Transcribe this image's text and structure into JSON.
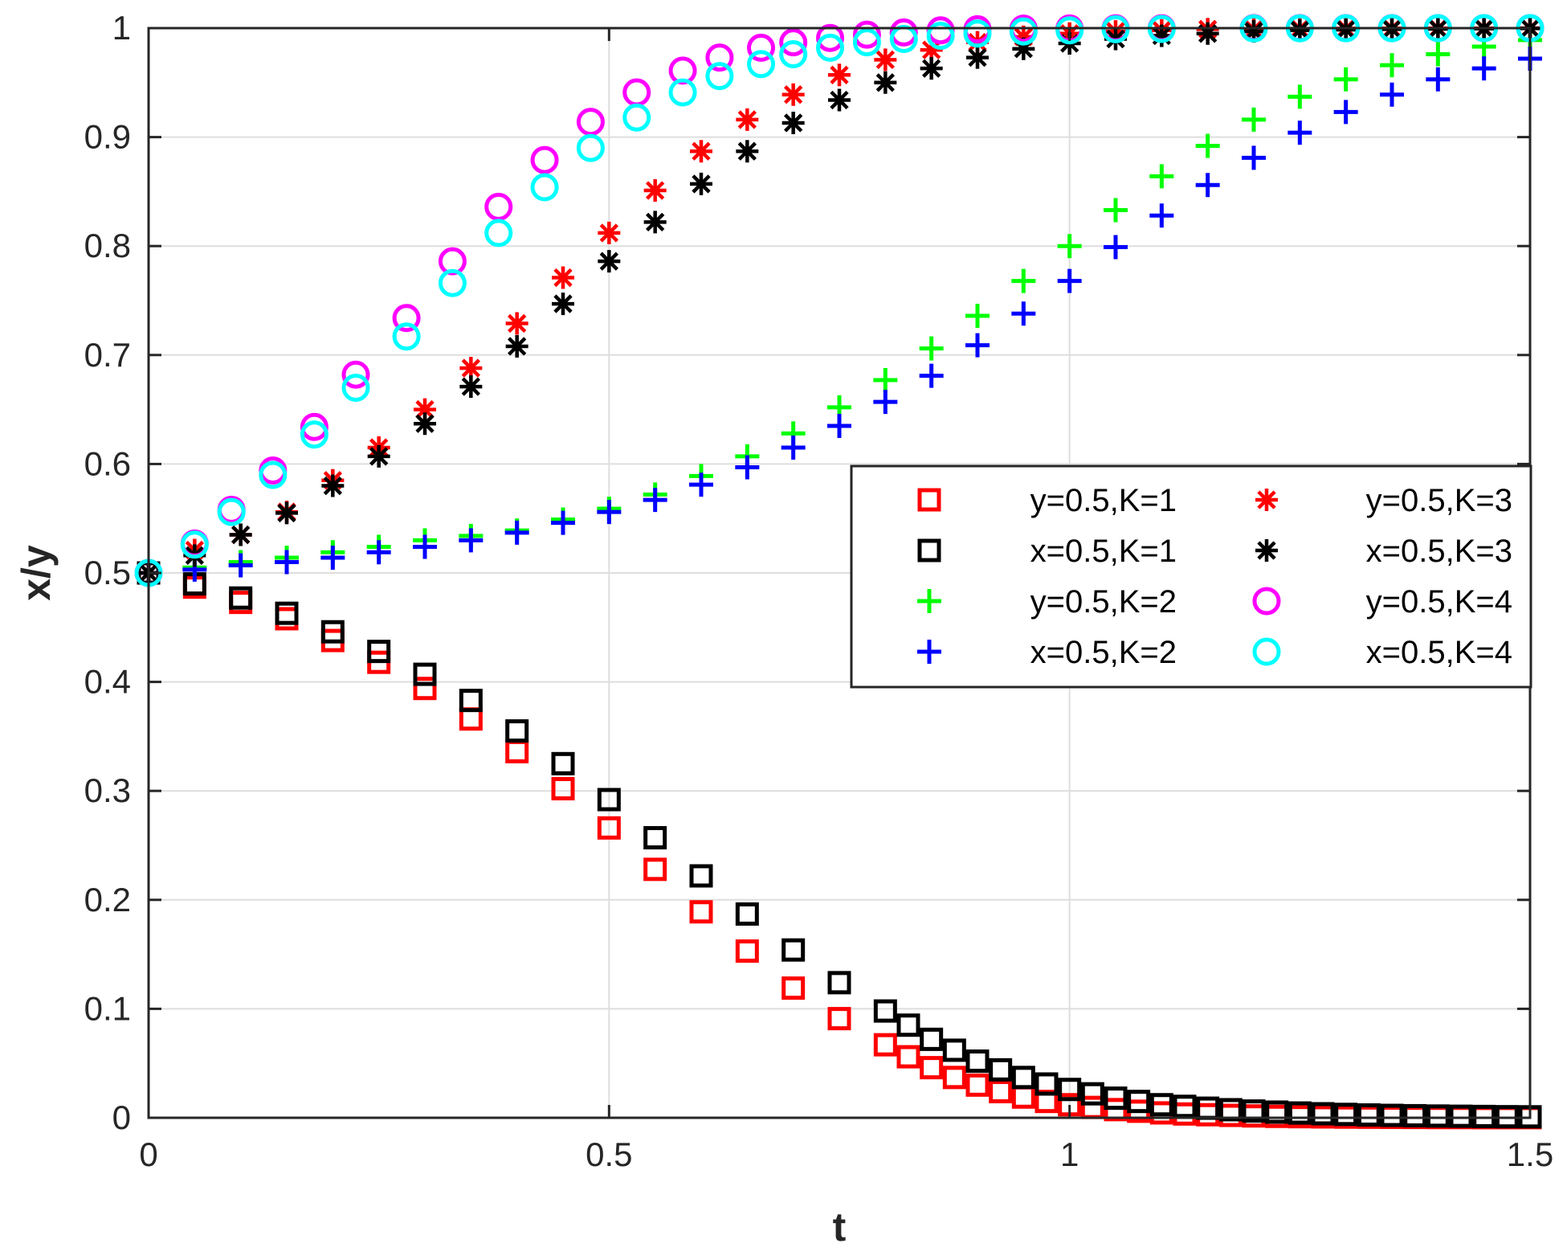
{
  "chart_data": {
    "type": "scatter",
    "title": "",
    "xlabel": "t",
    "ylabel": "x/y",
    "xlim": [
      0,
      1.5
    ],
    "ylim": [
      0,
      1
    ],
    "xticks": [
      0,
      0.5,
      1,
      1.5
    ],
    "xtick_labels": [
      "0",
      "0.5",
      "1",
      "1.5"
    ],
    "yticks": [
      0,
      0.1,
      0.2,
      0.3,
      0.4,
      0.5,
      0.6,
      0.7,
      0.8,
      0.9,
      1
    ],
    "ytick_labels": [
      "0",
      "0.1",
      "0.2",
      "0.3",
      "0.4",
      "0.5",
      "0.6",
      "0.7",
      "0.8",
      "0.9",
      "1"
    ],
    "grid": true,
    "legend_position": "right-middle",
    "series": [
      {
        "name": "y=0.5,K=1",
        "marker": "square",
        "color": "#ff0000",
        "points": [
          [
            0,
            0.5
          ],
          [
            0.05,
            0.487
          ],
          [
            0.1,
            0.473
          ],
          [
            0.15,
            0.458
          ],
          [
            0.2,
            0.438
          ],
          [
            0.25,
            0.418
          ],
          [
            0.3,
            0.394
          ],
          [
            0.35,
            0.366
          ],
          [
            0.4,
            0.336
          ],
          [
            0.45,
            0.302
          ],
          [
            0.5,
            0.266
          ],
          [
            0.55,
            0.228
          ],
          [
            0.6,
            0.189
          ],
          [
            0.65,
            0.153
          ],
          [
            0.7,
            0.119
          ],
          [
            0.75,
            0.091
          ],
          [
            0.8,
            0.067
          ],
          [
            0.825,
            0.056
          ],
          [
            0.85,
            0.046
          ],
          [
            0.875,
            0.037
          ],
          [
            0.9,
            0.03
          ],
          [
            0.925,
            0.024
          ],
          [
            0.95,
            0.019
          ],
          [
            0.975,
            0.015
          ],
          [
            1.0,
            0.012
          ],
          [
            1.025,
            0.0095
          ],
          [
            1.05,
            0.0075
          ],
          [
            1.075,
            0.006
          ],
          [
            1.1,
            0.0045
          ],
          [
            1.125,
            0.0035
          ],
          [
            1.15,
            0.0028
          ],
          [
            1.175,
            0.0022
          ],
          [
            1.2,
            0.0017
          ],
          [
            1.225,
            0.0013
          ],
          [
            1.25,
            0.001
          ],
          [
            1.275,
            0.0008
          ],
          [
            1.3,
            0.0006
          ],
          [
            1.325,
            0.0005
          ],
          [
            1.35,
            0.0004
          ],
          [
            1.375,
            0.0003
          ],
          [
            1.4,
            0.0002
          ],
          [
            1.425,
            0.0002
          ],
          [
            1.45,
            0.0001
          ],
          [
            1.475,
            0.0001
          ],
          [
            1.5,
            0.0001
          ]
        ]
      },
      {
        "name": "x=0.5,K=1",
        "marker": "square",
        "color": "#000000",
        "points": [
          [
            0,
            0.5
          ],
          [
            0.05,
            0.49
          ],
          [
            0.1,
            0.477
          ],
          [
            0.15,
            0.463
          ],
          [
            0.2,
            0.446
          ],
          [
            0.25,
            0.428
          ],
          [
            0.3,
            0.407
          ],
          [
            0.35,
            0.383
          ],
          [
            0.4,
            0.355
          ],
          [
            0.45,
            0.325
          ],
          [
            0.5,
            0.292
          ],
          [
            0.55,
            0.257
          ],
          [
            0.6,
            0.222
          ],
          [
            0.65,
            0.187
          ],
          [
            0.7,
            0.154
          ],
          [
            0.75,
            0.124
          ],
          [
            0.8,
            0.098
          ],
          [
            0.825,
            0.085
          ],
          [
            0.85,
            0.072
          ],
          [
            0.875,
            0.062
          ],
          [
            0.9,
            0.052
          ],
          [
            0.925,
            0.044
          ],
          [
            0.95,
            0.037
          ],
          [
            0.975,
            0.031
          ],
          [
            1.0,
            0.026
          ],
          [
            1.025,
            0.022
          ],
          [
            1.05,
            0.018
          ],
          [
            1.075,
            0.015
          ],
          [
            1.1,
            0.012
          ],
          [
            1.125,
            0.0105
          ],
          [
            1.15,
            0.0088
          ],
          [
            1.175,
            0.0074
          ],
          [
            1.2,
            0.0062
          ],
          [
            1.225,
            0.0052
          ],
          [
            1.25,
            0.0044
          ],
          [
            1.275,
            0.0037
          ],
          [
            1.3,
            0.0031
          ],
          [
            1.325,
            0.0026
          ],
          [
            1.35,
            0.0022
          ],
          [
            1.375,
            0.0019
          ],
          [
            1.4,
            0.0016
          ],
          [
            1.425,
            0.0014
          ],
          [
            1.45,
            0.0012
          ],
          [
            1.475,
            0.001
          ],
          [
            1.5,
            0.0009
          ]
        ]
      },
      {
        "name": "y=0.5,K=2",
        "marker": "plus",
        "color": "#00ff00",
        "points": [
          [
            0,
            0.5
          ],
          [
            0.05,
            0.505
          ],
          [
            0.1,
            0.51
          ],
          [
            0.15,
            0.514
          ],
          [
            0.2,
            0.519
          ],
          [
            0.25,
            0.524
          ],
          [
            0.3,
            0.53
          ],
          [
            0.35,
            0.534
          ],
          [
            0.4,
            0.539
          ],
          [
            0.45,
            0.549
          ],
          [
            0.5,
            0.559
          ],
          [
            0.55,
            0.572
          ],
          [
            0.6,
            0.589
          ],
          [
            0.65,
            0.607
          ],
          [
            0.7,
            0.628
          ],
          [
            0.75,
            0.652
          ],
          [
            0.8,
            0.677
          ],
          [
            0.85,
            0.706
          ],
          [
            0.9,
            0.736
          ],
          [
            0.95,
            0.768
          ],
          [
            1.0,
            0.8
          ],
          [
            1.05,
            0.833
          ],
          [
            1.1,
            0.864
          ],
          [
            1.15,
            0.892
          ],
          [
            1.2,
            0.916
          ],
          [
            1.25,
            0.937
          ],
          [
            1.3,
            0.953
          ],
          [
            1.35,
            0.966
          ],
          [
            1.4,
            0.976
          ],
          [
            1.45,
            0.983
          ],
          [
            1.5,
            0.989
          ]
        ]
      },
      {
        "name": "x=0.5,K=2",
        "marker": "plus",
        "color": "#0000ff",
        "points": [
          [
            0,
            0.5
          ],
          [
            0.05,
            0.503
          ],
          [
            0.1,
            0.507
          ],
          [
            0.15,
            0.51
          ],
          [
            0.2,
            0.514
          ],
          [
            0.25,
            0.519
          ],
          [
            0.3,
            0.524
          ],
          [
            0.35,
            0.53
          ],
          [
            0.4,
            0.537
          ],
          [
            0.45,
            0.546
          ],
          [
            0.5,
            0.556
          ],
          [
            0.55,
            0.567
          ],
          [
            0.6,
            0.581
          ],
          [
            0.65,
            0.597
          ],
          [
            0.7,
            0.615
          ],
          [
            0.75,
            0.635
          ],
          [
            0.8,
            0.657
          ],
          [
            0.85,
            0.681
          ],
          [
            0.9,
            0.709
          ],
          [
            0.95,
            0.738
          ],
          [
            1.0,
            0.768
          ],
          [
            1.05,
            0.799
          ],
          [
            1.1,
            0.828
          ],
          [
            1.15,
            0.856
          ],
          [
            1.2,
            0.881
          ],
          [
            1.25,
            0.904
          ],
          [
            1.3,
            0.923
          ],
          [
            1.35,
            0.939
          ],
          [
            1.4,
            0.953
          ],
          [
            1.45,
            0.963
          ],
          [
            1.5,
            0.972
          ]
        ]
      },
      {
        "name": "y=0.5,K=3",
        "marker": "asterisk",
        "color": "#ff0000",
        "points": [
          [
            0,
            0.5
          ],
          [
            0.05,
            0.521
          ],
          [
            0.1,
            0.535
          ],
          [
            0.15,
            0.556
          ],
          [
            0.2,
            0.585
          ],
          [
            0.25,
            0.615
          ],
          [
            0.3,
            0.65
          ],
          [
            0.35,
            0.688
          ],
          [
            0.4,
            0.729
          ],
          [
            0.45,
            0.771
          ],
          [
            0.5,
            0.812
          ],
          [
            0.55,
            0.851
          ],
          [
            0.6,
            0.887
          ],
          [
            0.65,
            0.916
          ],
          [
            0.7,
            0.939
          ],
          [
            0.75,
            0.957
          ],
          [
            0.8,
            0.971
          ],
          [
            0.85,
            0.98
          ],
          [
            0.9,
            0.987
          ],
          [
            0.95,
            0.992
          ],
          [
            1.0,
            0.995
          ],
          [
            1.05,
            0.997
          ],
          [
            1.1,
            0.998
          ],
          [
            1.15,
            0.999
          ],
          [
            1.2,
            0.999
          ],
          [
            1.25,
            0.9995
          ],
          [
            1.3,
            0.9997
          ],
          [
            1.35,
            0.9998
          ],
          [
            1.4,
            0.9999
          ],
          [
            1.45,
            0.9999
          ],
          [
            1.5,
            1.0
          ]
        ]
      },
      {
        "name": "x=0.5,K=3",
        "marker": "asterisk",
        "color": "#000000",
        "points": [
          [
            0,
            0.5
          ],
          [
            0.05,
            0.516
          ],
          [
            0.1,
            0.535
          ],
          [
            0.15,
            0.555
          ],
          [
            0.2,
            0.58
          ],
          [
            0.25,
            0.607
          ],
          [
            0.3,
            0.637
          ],
          [
            0.35,
            0.671
          ],
          [
            0.4,
            0.708
          ],
          [
            0.45,
            0.747
          ],
          [
            0.5,
            0.786
          ],
          [
            0.55,
            0.822
          ],
          [
            0.6,
            0.857
          ],
          [
            0.65,
            0.887
          ],
          [
            0.7,
            0.913
          ],
          [
            0.75,
            0.934
          ],
          [
            0.8,
            0.95
          ],
          [
            0.85,
            0.963
          ],
          [
            0.9,
            0.973
          ],
          [
            0.95,
            0.981
          ],
          [
            1.0,
            0.986
          ],
          [
            1.05,
            0.99
          ],
          [
            1.1,
            0.993
          ],
          [
            1.15,
            0.995
          ],
          [
            1.2,
            0.997
          ],
          [
            1.25,
            0.998
          ],
          [
            1.3,
            0.9985
          ],
          [
            1.35,
            0.999
          ],
          [
            1.4,
            0.9993
          ],
          [
            1.45,
            0.9995
          ],
          [
            1.5,
            0.9997
          ]
        ]
      },
      {
        "name": "y=0.5,K=4",
        "marker": "circle",
        "color": "#ff00ff",
        "points": [
          [
            0,
            0.5
          ],
          [
            0.05,
            0.527
          ],
          [
            0.09,
            0.558
          ],
          [
            0.135,
            0.594
          ],
          [
            0.18,
            0.634
          ],
          [
            0.225,
            0.682
          ],
          [
            0.28,
            0.734
          ],
          [
            0.33,
            0.786
          ],
          [
            0.38,
            0.836
          ],
          [
            0.43,
            0.879
          ],
          [
            0.48,
            0.914
          ],
          [
            0.53,
            0.941
          ],
          [
            0.58,
            0.961
          ],
          [
            0.62,
            0.973
          ],
          [
            0.665,
            0.982
          ],
          [
            0.7,
            0.987
          ],
          [
            0.74,
            0.991
          ],
          [
            0.78,
            0.994
          ],
          [
            0.82,
            0.996
          ],
          [
            0.86,
            0.998
          ],
          [
            0.9,
            0.999
          ],
          [
            0.95,
            0.9995
          ],
          [
            1.0,
            0.9997
          ],
          [
            1.05,
            0.9998
          ],
          [
            1.1,
            0.9999
          ],
          [
            1.2,
            1.0
          ],
          [
            1.25,
            1.0
          ],
          [
            1.3,
            1.0
          ],
          [
            1.35,
            1.0
          ],
          [
            1.4,
            1.0
          ],
          [
            1.45,
            1.0
          ],
          [
            1.5,
            1.0
          ]
        ]
      },
      {
        "name": "x=0.5,K=4",
        "marker": "circle",
        "color": "#00ffff",
        "points": [
          [
            0,
            0.5
          ],
          [
            0.05,
            0.526
          ],
          [
            0.09,
            0.556
          ],
          [
            0.135,
            0.59
          ],
          [
            0.18,
            0.627
          ],
          [
            0.225,
            0.67
          ],
          [
            0.28,
            0.717
          ],
          [
            0.33,
            0.766
          ],
          [
            0.38,
            0.812
          ],
          [
            0.43,
            0.854
          ],
          [
            0.48,
            0.89
          ],
          [
            0.53,
            0.918
          ],
          [
            0.58,
            0.941
          ],
          [
            0.62,
            0.956
          ],
          [
            0.665,
            0.967
          ],
          [
            0.7,
            0.976
          ],
          [
            0.74,
            0.982
          ],
          [
            0.78,
            0.987
          ],
          [
            0.82,
            0.99
          ],
          [
            0.86,
            0.993
          ],
          [
            0.9,
            0.995
          ],
          [
            0.95,
            0.997
          ],
          [
            1.0,
            0.998
          ],
          [
            1.05,
            0.999
          ],
          [
            1.1,
            0.9993
          ],
          [
            1.2,
            0.9997
          ],
          [
            1.25,
            0.9998
          ],
          [
            1.3,
            0.9999
          ],
          [
            1.35,
            0.9999
          ],
          [
            1.4,
            1.0
          ],
          [
            1.45,
            1.0
          ],
          [
            1.5,
            1.0
          ]
        ]
      }
    ]
  }
}
